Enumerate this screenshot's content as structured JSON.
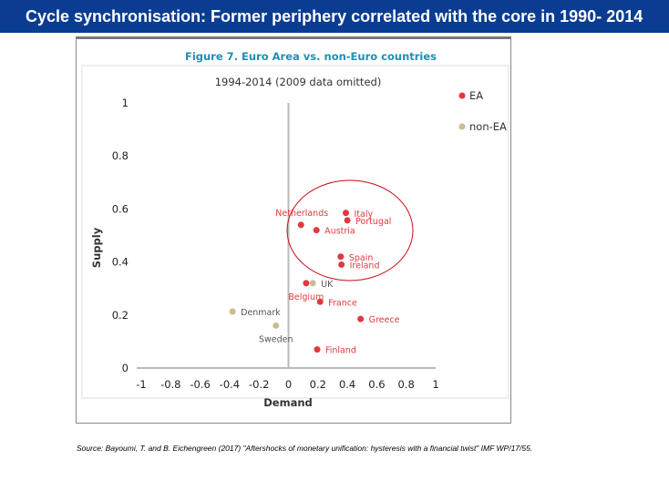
{
  "header": {
    "title": "Cycle synchronisation: Former periphery correlated with the core in 1990- 2014"
  },
  "source": "Source: Bayoumi, T. and B. Eichengreen (2017) \"Aftershocks of monetary unification:  hysteresis with a financial twist\" IMF WP/17/55.",
  "colors": {
    "EA": "#e0393e",
    "non-EA": "#c9bd96",
    "title": "#1f8fb5",
    "ellipse": "#c0101a"
  },
  "chart_data": {
    "type": "scatter",
    "title": "Figure 7. Euro Area vs. non-Euro countries",
    "subtitle": "1994-2014 (2009 data omitted)",
    "xlabel": "Demand",
    "ylabel": "Supply",
    "xlim": [
      -1,
      1
    ],
    "ylim": [
      0,
      1
    ],
    "xticks": [
      "-1",
      "-0.8",
      "-0.6",
      "-0.4",
      "-0.2",
      "0",
      "0.2",
      "0.4",
      "0.6",
      "0.8",
      "1"
    ],
    "yticks": [
      "0",
      "0.2",
      "0.4",
      "0.6",
      "0.8",
      "1"
    ],
    "legend": {
      "placement": "top-right",
      "entries": [
        "EA",
        "non-EA"
      ]
    },
    "points": [
      {
        "name": "Netherlands",
        "group": "EA",
        "x": 0.085,
        "y": 0.54,
        "label": "above-left"
      },
      {
        "name": "Austria",
        "group": "EA",
        "x": 0.19,
        "y": 0.52,
        "label": "right"
      },
      {
        "name": "Italy",
        "group": "EA",
        "x": 0.39,
        "y": 0.585,
        "label": "right"
      },
      {
        "name": "Portugal",
        "group": "EA",
        "x": 0.4,
        "y": 0.557,
        "label": "right"
      },
      {
        "name": "Spain",
        "group": "EA",
        "x": 0.355,
        "y": 0.42,
        "label": "right"
      },
      {
        "name": "Ireland",
        "group": "EA",
        "x": 0.36,
        "y": 0.39,
        "label": "right"
      },
      {
        "name": "Belgium",
        "group": "EA",
        "x": 0.12,
        "y": 0.32,
        "label": "below"
      },
      {
        "name": "UK",
        "group": "non-EA",
        "x": 0.165,
        "y": 0.32,
        "label": "right"
      },
      {
        "name": "France",
        "group": "EA",
        "x": 0.215,
        "y": 0.25,
        "label": "right"
      },
      {
        "name": "Greece",
        "group": "EA",
        "x": 0.49,
        "y": 0.185,
        "label": "right"
      },
      {
        "name": "Finland",
        "group": "EA",
        "x": 0.195,
        "y": 0.07,
        "label": "right"
      },
      {
        "name": "Denmark",
        "group": "non-EA",
        "x": -0.38,
        "y": 0.213,
        "label": "right"
      },
      {
        "name": "Sweden",
        "group": "non-EA",
        "x": -0.085,
        "y": 0.16,
        "label": "below"
      }
    ]
  }
}
